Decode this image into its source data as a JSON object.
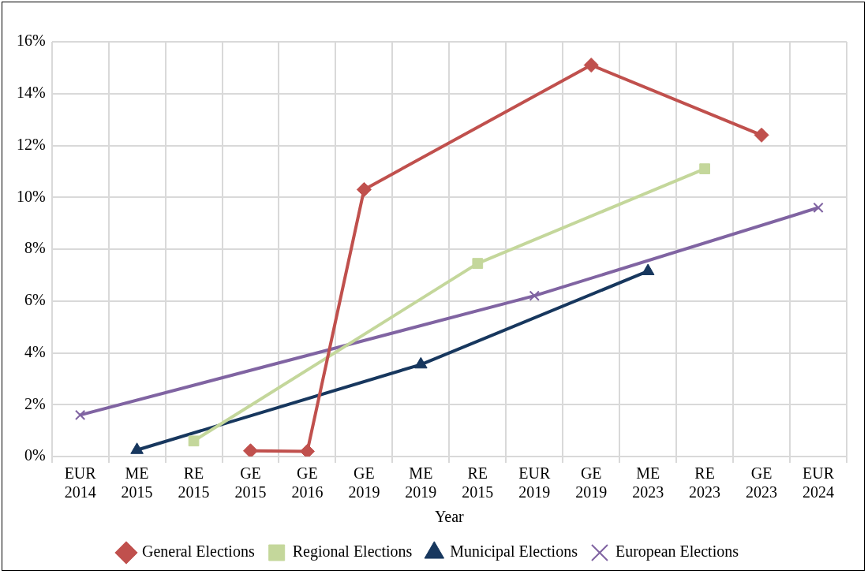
{
  "chart_data": {
    "type": "line",
    "xlabel": "Year",
    "categories": [
      "EUR 2014",
      "ME 2015",
      "RE 2015",
      "GE 2015",
      "GE 2016",
      "GE 2019",
      "ME 2019",
      "RE 2015",
      "EUR 2019",
      "GE 2019",
      "ME 2023",
      "RE 2023",
      "GE 2023",
      "EUR 2024"
    ],
    "series": [
      {
        "name": "General Elections",
        "color": "#c0504d",
        "marker": "diamond",
        "values": [
          null,
          null,
          null,
          0.22,
          0.2,
          10.3,
          null,
          null,
          null,
          15.1,
          null,
          null,
          12.4,
          null
        ]
      },
      {
        "name": "Regional Elections",
        "color": "#c4d79b",
        "marker": "square",
        "values": [
          null,
          null,
          0.6,
          null,
          null,
          null,
          null,
          7.45,
          null,
          null,
          null,
          11.1,
          null,
          null
        ]
      },
      {
        "name": "Municipal Elections",
        "color": "#17375e",
        "marker": "triangle",
        "values": [
          null,
          0.25,
          null,
          null,
          null,
          null,
          3.55,
          null,
          null,
          null,
          7.15,
          null,
          null,
          null
        ]
      },
      {
        "name": "European Elections",
        "color": "#8064a2",
        "marker": "cross",
        "values": [
          1.6,
          null,
          null,
          null,
          null,
          null,
          null,
          null,
          6.2,
          null,
          null,
          null,
          null,
          9.6
        ]
      }
    ],
    "ylim": [
      0,
      16
    ],
    "yticks": [
      {
        "value": 0,
        "label": "0%"
      },
      {
        "value": 2,
        "label": "2%"
      },
      {
        "value": 4,
        "label": "4%"
      },
      {
        "value": 6,
        "label": "6%"
      },
      {
        "value": 8,
        "label": "8%"
      },
      {
        "value": 10,
        "label": "10%"
      },
      {
        "value": 12,
        "label": "12%"
      },
      {
        "value": 14,
        "label": "14%"
      },
      {
        "value": 16,
        "label": "16%"
      }
    ],
    "grid": true,
    "legend": "bottom",
    "line_style": "solid"
  }
}
